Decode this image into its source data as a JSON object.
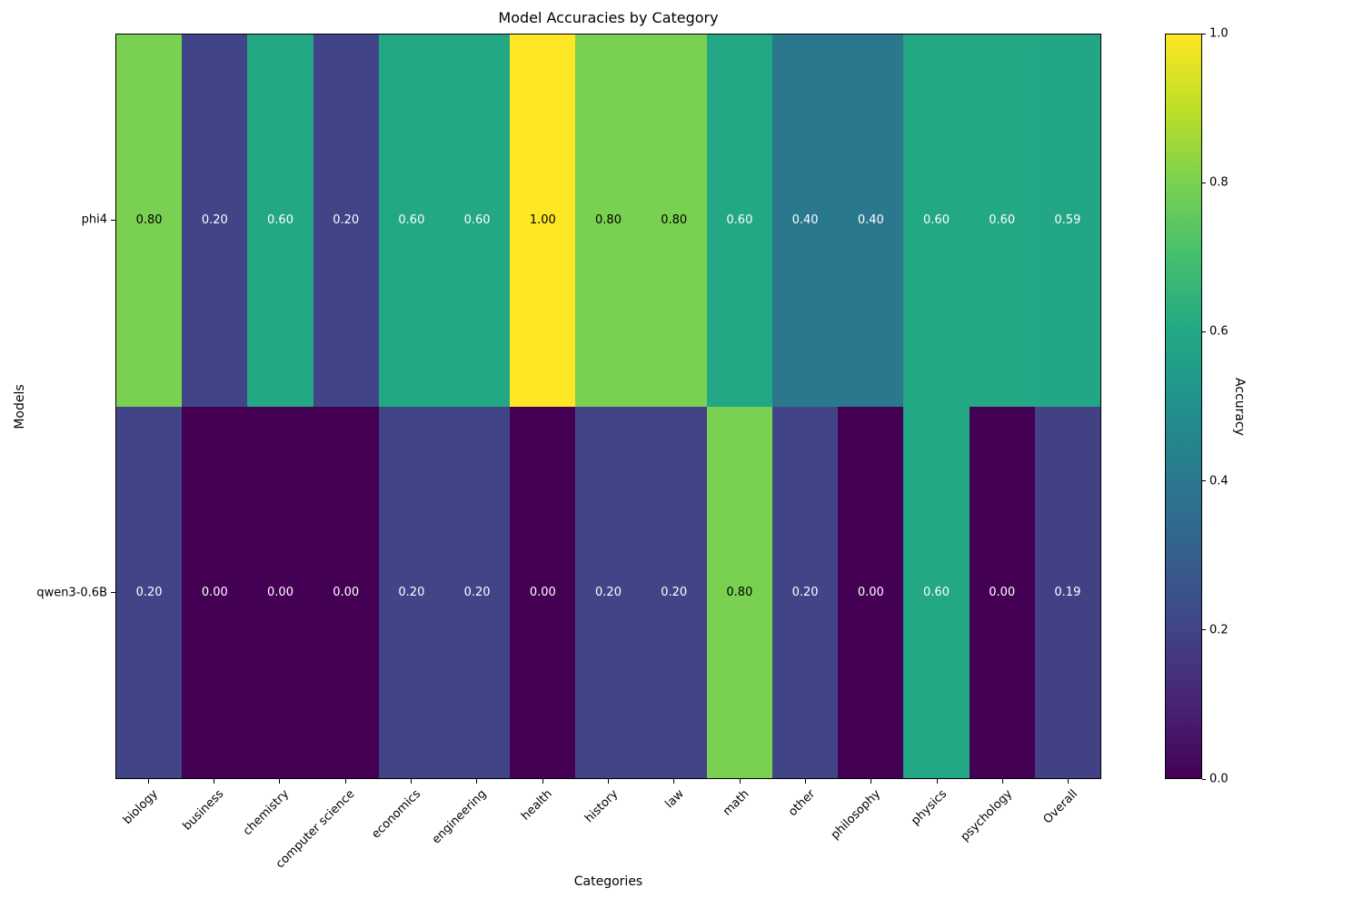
{
  "title": "Model Accuracies by Category",
  "xlabel": "Categories",
  "ylabel": "Models",
  "colorbar": {
    "label": "Accuracy",
    "ticks": [
      1.0,
      0.8,
      0.6,
      0.4,
      0.2,
      0.0
    ],
    "vmin": 0.0,
    "vmax": 1.0
  },
  "colors": {
    "colormap": "viridis",
    "stops": [
      "#440154",
      "#482475",
      "#414487",
      "#355f8d",
      "#2a788e",
      "#21918c",
      "#22a884",
      "#44bf70",
      "#7ad151",
      "#bddf26",
      "#fde725"
    ],
    "cell_text_light": "#ffffff",
    "cell_text_dark": "#000000",
    "background": "#ffffff",
    "spine": "#000000"
  },
  "chart_data": {
    "type": "heatmap",
    "title": "Model Accuracies by Category",
    "xlabel": "Categories",
    "ylabel": "Models",
    "categories": [
      "biology",
      "business",
      "chemistry",
      "computer science",
      "economics",
      "engineering",
      "health",
      "history",
      "law",
      "math",
      "other",
      "philosophy",
      "physics",
      "psychology",
      "Overall"
    ],
    "series": [
      {
        "name": "phi4",
        "values": [
          0.8,
          0.2,
          0.6,
          0.2,
          0.6,
          0.6,
          1.0,
          0.8,
          0.8,
          0.6,
          0.4,
          0.4,
          0.6,
          0.6,
          0.59
        ]
      },
      {
        "name": "qwen3-0.6B",
        "values": [
          0.2,
          0.0,
          0.0,
          0.0,
          0.2,
          0.2,
          0.0,
          0.2,
          0.2,
          0.8,
          0.2,
          0.0,
          0.6,
          0.0,
          0.19
        ]
      }
    ],
    "vmin": 0,
    "vmax": 1,
    "colormap": "viridis",
    "colorbar_label": "Accuracy",
    "annotation_format": "two-decimals",
    "legend_position": "right-colorbar",
    "grid": false
  }
}
